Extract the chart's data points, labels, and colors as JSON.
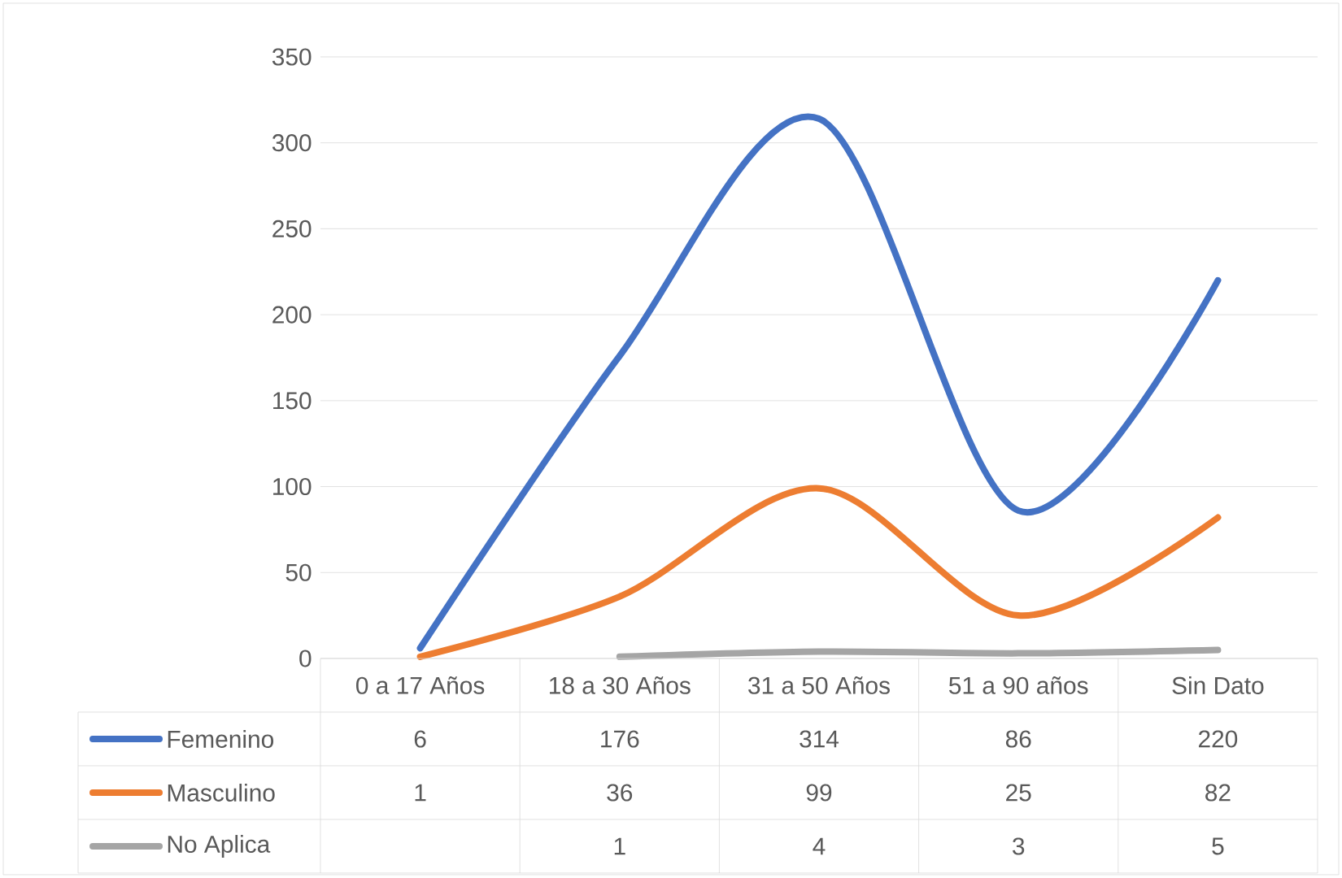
{
  "chart_data": {
    "type": "line",
    "categories": [
      "0 a 17 Años",
      "18 a 30 Años",
      "31 a 50 Años",
      "51 a 90 años",
      "Sin Dato"
    ],
    "series": [
      {
        "name": "Femenino",
        "color": "#4472c4",
        "values": [
          6,
          176,
          314,
          86,
          220
        ]
      },
      {
        "name": "Masculino",
        "color": "#ed7d31",
        "values": [
          1,
          36,
          99,
          25,
          82
        ]
      },
      {
        "name": "No Aplica",
        "color": "#a5a5a5",
        "values": [
          null,
          1,
          4,
          3,
          5
        ]
      }
    ],
    "ylim": [
      0,
      350
    ],
    "yticks": [
      0,
      50,
      100,
      150,
      200,
      250,
      300,
      350
    ],
    "grid": "y",
    "legend": "bottom",
    "data_labels": true,
    "marker": "none",
    "line_style": "solid"
  }
}
